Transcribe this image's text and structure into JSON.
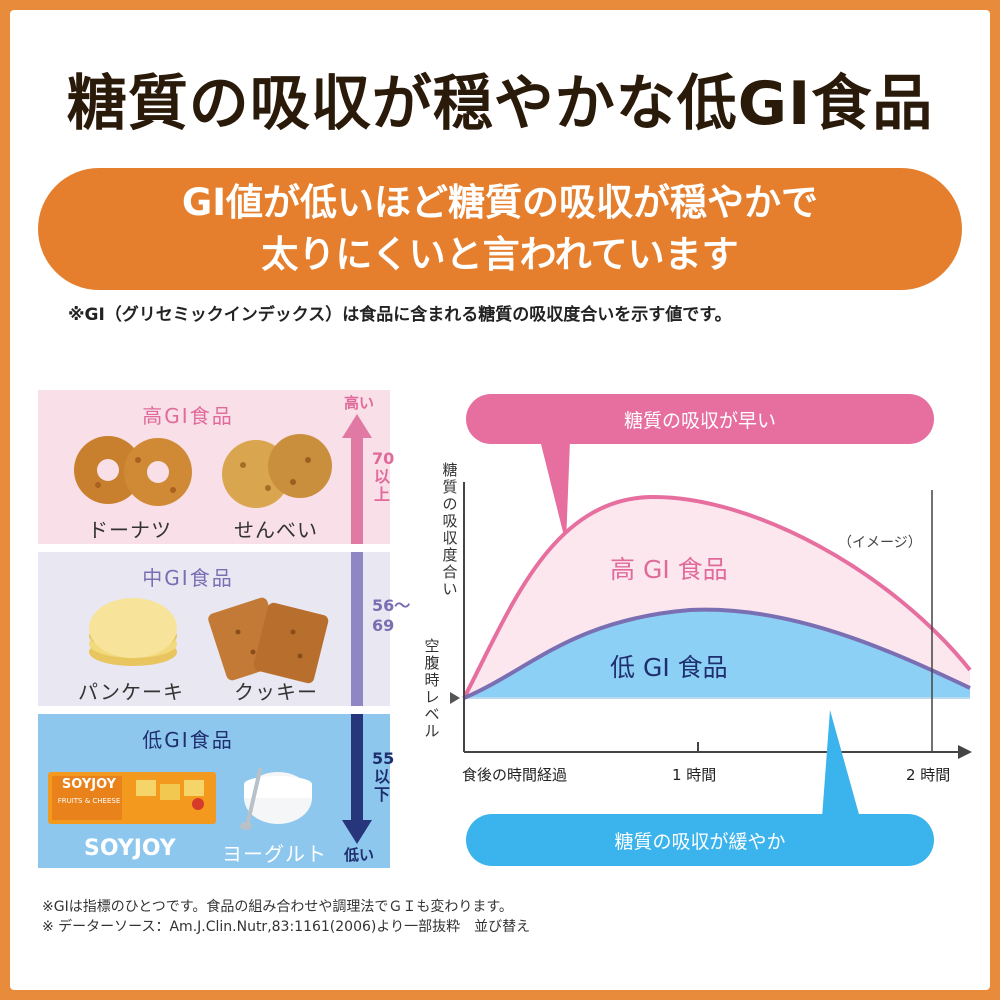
{
  "title": "糖質の吸収が穏やかな低GI食品",
  "banner": {
    "line1": "GI値が低いほど糖質の吸収が穏やかで",
    "line2": "太りにくいと言われています"
  },
  "note": "※GI（グリセミックインデックス）は食品に含まれる糖質の吸収度合いを示す値です。",
  "gi_table": {
    "high": {
      "title": "高GI食品",
      "foods": [
        "ドーナツ",
        "せんべい"
      ],
      "range": "70以上",
      "scale_top": "高い"
    },
    "mid": {
      "title": "中GI食品",
      "foods": [
        "パンケーキ",
        "クッキー"
      ],
      "range": "56〜69"
    },
    "low": {
      "title": "低GI食品",
      "foods": [
        "SOYJOY",
        "ヨーグルト"
      ],
      "range": "55以下",
      "scale_bottom": "低い",
      "bar_product": "SOYJOY",
      "bar_flavor": "FRUITS & CHEESE"
    }
  },
  "diagram": {
    "top_callout": "糖質の吸収が早い",
    "bottom_callout": "糖質の吸収が緩やか",
    "y_axis_label": "糖質の吸収度合い",
    "baseline_label": "空腹時レベル",
    "image_note": "（イメージ）",
    "high_curve_label": "高 GI 食品",
    "low_curve_label": "低 GI 食品",
    "x_ticks": [
      "食後の時間経過",
      "1 時間",
      "2 時間"
    ]
  },
  "footer": {
    "line1": "※GIは指標のひとつです。食品の組み合わせや調理法でＧＩも変わります。",
    "line2": "※ データーソース：Am.J.Clin.Nutr,83:1161(2006)より一部抜粋　並び替え"
  },
  "colors": {
    "orange": "#e57f2d",
    "pink": "#e06b9a",
    "purple": "#7a6fb3",
    "blue": "#3bb3ec",
    "navy": "#1f2f6e"
  }
}
